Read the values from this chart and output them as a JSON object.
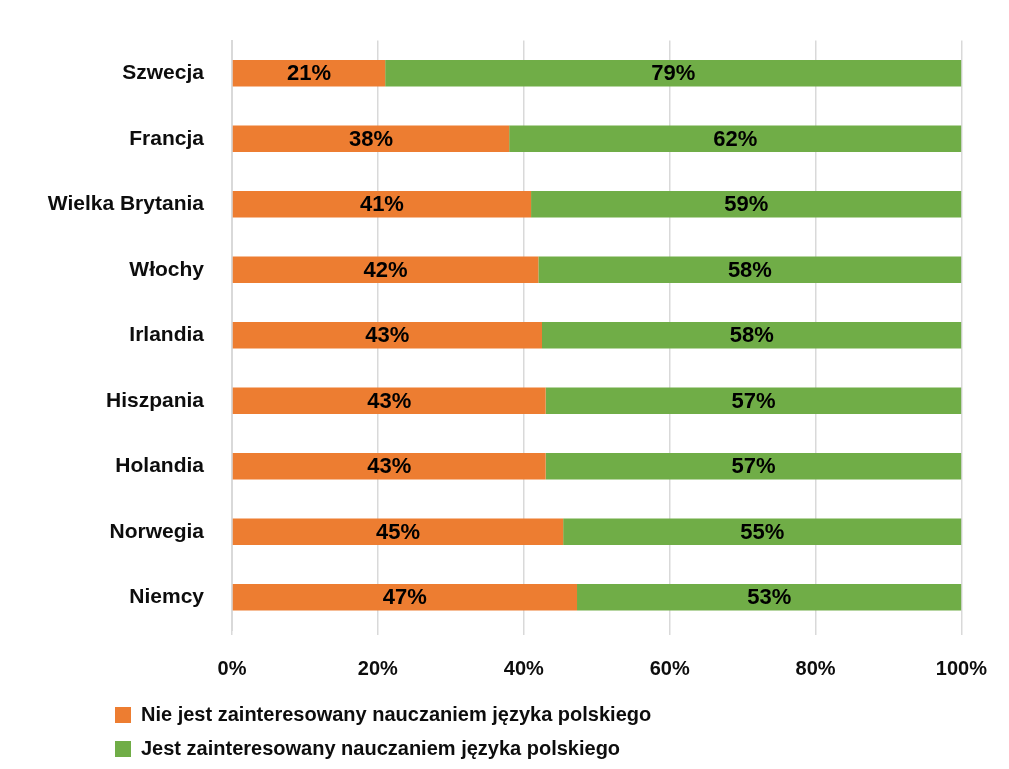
{
  "chart_data": {
    "type": "bar",
    "orientation": "horizontal",
    "stacked": true,
    "categories": [
      "Szwecja",
      "Francja",
      "Wielka Brytania",
      "Włochy",
      "Irlandia",
      "Hiszpania",
      "Holandia",
      "Norwegia",
      "Niemcy"
    ],
    "series": [
      {
        "name": "Nie jest zainteresowany nauczaniem języka polskiego",
        "color": "#ed7d31",
        "values": [
          21,
          38,
          41,
          42,
          42.5,
          43,
          43,
          45.4,
          47.3
        ],
        "value_labels": [
          "21%",
          "38%",
          "41%",
          "42%",
          "43%",
          "43%",
          "43%",
          "45%",
          "47%"
        ]
      },
      {
        "name": "Jest zainteresowany nauczaniem języka polskiego",
        "color": "#70ad47",
        "values": [
          79,
          62,
          59,
          58,
          57.5,
          57,
          57,
          54.6,
          52.7
        ],
        "value_labels": [
          "79%",
          "62%",
          "59%",
          "58%",
          "58%",
          "57%",
          "57%",
          "55%",
          "53%"
        ]
      }
    ],
    "xlim": [
      0,
      100
    ],
    "xticks": [
      {
        "value": 0,
        "label": "0%"
      },
      {
        "value": 20,
        "label": "20%"
      },
      {
        "value": 40,
        "label": "40%"
      },
      {
        "value": 60,
        "label": "60%"
      },
      {
        "value": 80,
        "label": "80%"
      },
      {
        "value": 100,
        "label": "100%"
      }
    ],
    "grid": "x",
    "legend": "bottom left"
  }
}
